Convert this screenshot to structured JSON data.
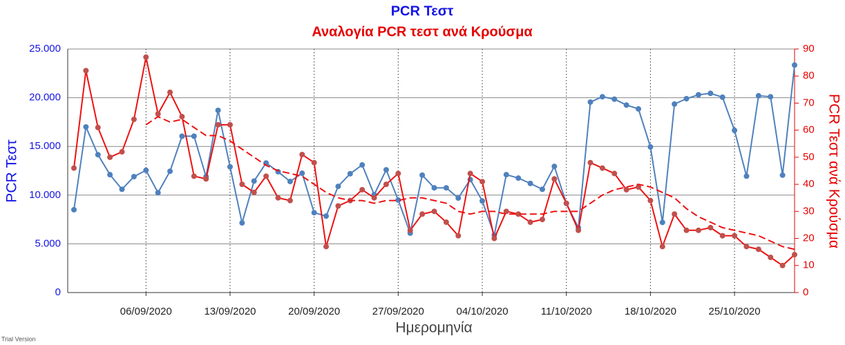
{
  "chart_data": {
    "type": "line",
    "title": "PCR Τεστ",
    "subtitle": "Αναλογία PCR τεστ ανά Κρούσμα",
    "x_label": "Ημερομηνία",
    "y_label": "PCR Τεστ",
    "y2_label": "PCR Τεστ ανά Κρούσμα",
    "watermark": "Trial Version",
    "x": [
      "31/08/2020",
      "01/09/2020",
      "02/09/2020",
      "03/09/2020",
      "04/09/2020",
      "05/09/2020",
      "06/09/2020",
      "07/09/2020",
      "08/09/2020",
      "09/09/2020",
      "10/09/2020",
      "11/09/2020",
      "12/09/2020",
      "13/09/2020",
      "14/09/2020",
      "15/09/2020",
      "16/09/2020",
      "17/09/2020",
      "18/09/2020",
      "19/09/2020",
      "20/09/2020",
      "21/09/2020",
      "22/09/2020",
      "23/09/2020",
      "24/09/2020",
      "25/09/2020",
      "26/09/2020",
      "27/09/2020",
      "28/09/2020",
      "29/09/2020",
      "30/09/2020",
      "01/10/2020",
      "02/10/2020",
      "03/10/2020",
      "04/10/2020",
      "05/10/2020",
      "06/10/2020",
      "07/10/2020",
      "08/10/2020",
      "09/10/2020",
      "10/10/2020",
      "11/10/2020",
      "12/10/2020",
      "13/10/2020",
      "14/10/2020",
      "15/10/2020",
      "16/10/2020",
      "17/10/2020",
      "18/10/2020",
      "19/10/2020",
      "20/10/2020",
      "21/10/2020",
      "22/10/2020",
      "23/10/2020",
      "24/10/2020",
      "25/10/2020",
      "26/10/2020",
      "27/10/2020",
      "28/10/2020",
      "29/10/2020",
      "30/10/2020"
    ],
    "xticks": [
      "06/09/2020",
      "13/09/2020",
      "20/09/2020",
      "27/09/2020",
      "04/10/2020",
      "11/10/2020",
      "18/10/2020",
      "25/10/2020"
    ],
    "ylim": [
      0,
      25000
    ],
    "yticks": [
      0,
      {
        "value": 5000,
        "label": "5.000"
      },
      {
        "value": 10000,
        "label": "10.000"
      },
      {
        "value": 15000,
        "label": "15.000"
      },
      {
        "value": 20000,
        "label": "20.000"
      },
      {
        "value": 25000,
        "label": "25.000"
      }
    ],
    "y2lim": [
      0,
      90
    ],
    "y2ticks": [
      0,
      10,
      20,
      30,
      40,
      50,
      60,
      70,
      80,
      90
    ],
    "grid": true,
    "series": [
      {
        "color": "#4f81bd",
        "marker_color": "#4f81bd",
        "axis": "y",
        "values": [
          8500,
          17000,
          14150,
          12100,
          10600,
          11900,
          12550,
          10250,
          12450,
          16050,
          16050,
          11900,
          18700,
          12900,
          7150,
          11450,
          13300,
          12400,
          11400,
          12250,
          8200,
          7850,
          10900,
          12200,
          13100,
          10050,
          12600,
          9500,
          6100,
          12050,
          10750,
          10750,
          9700,
          11600,
          9400,
          5900,
          12100,
          11750,
          11200,
          10600,
          12950,
          9150,
          6650,
          19550,
          20100,
          19850,
          19250,
          18850,
          14950,
          7200,
          19350,
          19900,
          20300,
          20450,
          20050,
          16650,
          11950,
          20200,
          20100,
          12050,
          23350
        ]
      },
      {
        "color": "#ee1111",
        "marker_color": "#c0504d",
        "axis": "y2",
        "values": [
          46,
          82,
          61,
          50,
          52,
          64,
          87,
          66,
          74,
          65,
          43,
          42,
          62,
          62,
          40,
          37,
          43,
          35,
          34,
          51,
          48,
          17,
          32,
          34,
          38,
          35,
          40,
          44,
          23,
          29,
          30,
          26,
          21,
          44,
          41,
          20,
          30,
          29,
          26,
          27,
          42,
          33,
          23,
          48,
          46,
          44,
          38,
          39,
          34,
          17,
          29,
          23,
          23,
          24,
          21,
          21,
          17,
          16,
          13,
          10,
          14
        ]
      },
      {
        "color": "#ee1111",
        "axis": "y2",
        "dash": true,
        "values": [
          null,
          null,
          null,
          null,
          null,
          null,
          62,
          65,
          63,
          64,
          61,
          58,
          58,
          56,
          53,
          50,
          47,
          45,
          44,
          43,
          40,
          37,
          35,
          34,
          34,
          33,
          34,
          34,
          35,
          35,
          34,
          33,
          30,
          29,
          30,
          30,
          29,
          29,
          29,
          29,
          30,
          30,
          30,
          33,
          36,
          38,
          39,
          40,
          39,
          37,
          35,
          31,
          28,
          26,
          24,
          23,
          22,
          21,
          19,
          17,
          16
        ]
      }
    ]
  }
}
